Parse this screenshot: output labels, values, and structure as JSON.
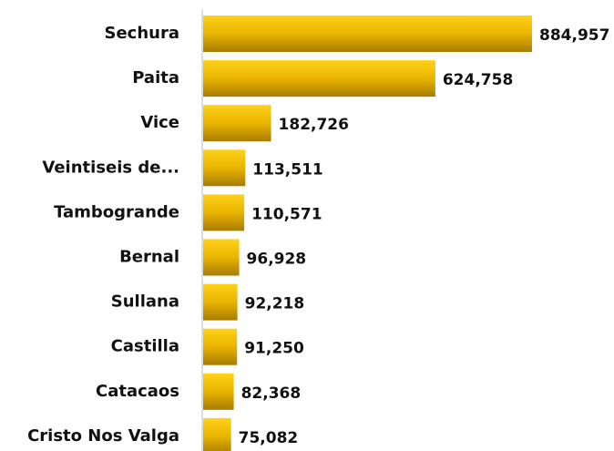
{
  "chart_data": {
    "type": "bar",
    "orientation": "horizontal",
    "categories": [
      "Sechura",
      "Paita",
      "Vice",
      "Veintiseis de...",
      "Tambogrande",
      "Bernal",
      "Sullana",
      "Castilla",
      "Catacaos",
      "Cristo Nos Valga"
    ],
    "values": [
      884957,
      624758,
      182726,
      113511,
      110571,
      96928,
      92218,
      91250,
      82368,
      75082
    ],
    "value_labels": [
      "884,957",
      "624,758",
      "182,726",
      "113,511",
      "110,571",
      "96,928",
      "92,218",
      "91,250",
      "82,368",
      "75,082"
    ],
    "color": "#e0aa00"
  }
}
